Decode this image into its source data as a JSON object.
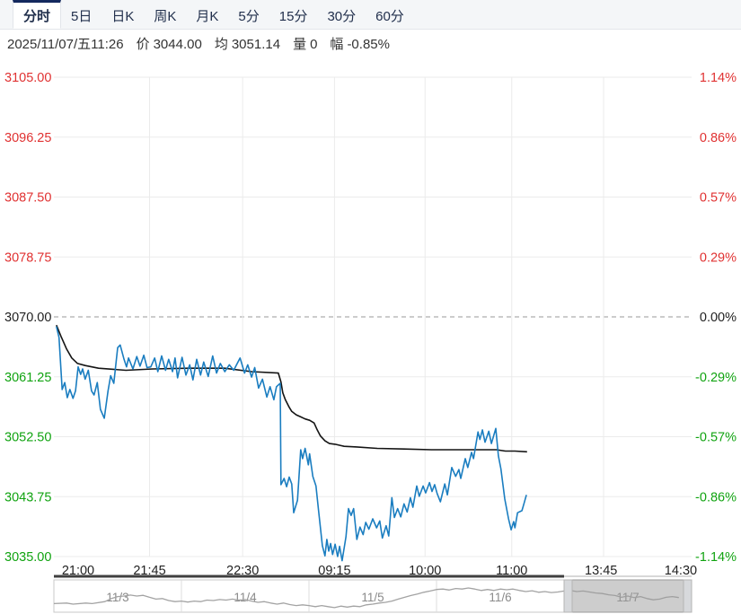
{
  "tabs": {
    "items": [
      {
        "label": "分时",
        "active": true
      },
      {
        "label": "5日",
        "active": false
      },
      {
        "label": "日K",
        "active": false
      },
      {
        "label": "周K",
        "active": false
      },
      {
        "label": "月K",
        "active": false
      },
      {
        "label": "5分",
        "active": false
      },
      {
        "label": "15分",
        "active": false
      },
      {
        "label": "30分",
        "active": false
      },
      {
        "label": "60分",
        "active": false
      }
    ]
  },
  "info_bar": {
    "datetime": "2025/11/07/五11:26",
    "price_label": "价",
    "price": "3044.00",
    "avg_label": "均",
    "avg": "3051.14",
    "volume_label": "量",
    "volume": "0",
    "change_label": "幅",
    "change": "-0.85%"
  },
  "chart_data": {
    "type": "line",
    "title": "分时 (intraday time-sharing chart)",
    "y_range": {
      "min": 3035,
      "max": 3105,
      "baseline": 3070
    },
    "y_axis_left": {
      "labels": [
        "3105.00",
        "3096.25",
        "3087.50",
        "3078.75",
        "3070.00",
        "3061.25",
        "3052.50",
        "3043.75",
        "3035.00"
      ]
    },
    "y_axis_right": {
      "labels": [
        "1.14%",
        "0.86%",
        "0.57%",
        "0.29%",
        "0.00%",
        "-0.29%",
        "-0.57%",
        "-0.86%",
        "-1.14%"
      ]
    },
    "x_axis": {
      "labels": [
        "21:00",
        "21:45",
        "22:30",
        "09:15",
        "10:00",
        "11:00",
        "13:45",
        "14:30"
      ],
      "positions": [
        0.038,
        0.15,
        0.296,
        0.44,
        0.582,
        0.718,
        0.858,
        0.983
      ]
    },
    "gridline_positions": [
      0.15,
      0.296,
      0.44,
      0.582,
      0.718,
      0.862
    ],
    "grid": true,
    "legend": "none",
    "progress_end": 0.8,
    "colors": {
      "positive": "#e03232",
      "negative": "#11a311",
      "neutral": "#222222",
      "price_line": "#1a7dc0",
      "average_line": "#141414",
      "grid": "#ebebeb",
      "baseline_dash": "#9a9a9a",
      "axis_dark": "#3f3f3f",
      "axis_light": "#d8d8d8"
    },
    "series": [
      {
        "name": "price",
        "color": "#1a7dc0",
        "points": [
          [
            0.004,
            3068.6
          ],
          [
            0.008,
            3067.0
          ],
          [
            0.013,
            3059.4
          ],
          [
            0.017,
            3060.4
          ],
          [
            0.021,
            3058.2
          ],
          [
            0.025,
            3059.4
          ],
          [
            0.03,
            3058.1
          ],
          [
            0.034,
            3059.2
          ],
          [
            0.038,
            3062.7
          ],
          [
            0.042,
            3061.6
          ],
          [
            0.045,
            3062.4
          ],
          [
            0.049,
            3060.9
          ],
          [
            0.054,
            3062.2
          ],
          [
            0.059,
            3059.2
          ],
          [
            0.063,
            3058.6
          ],
          [
            0.068,
            3060.4
          ],
          [
            0.073,
            3056.5
          ],
          [
            0.079,
            3055.2
          ],
          [
            0.085,
            3059.2
          ],
          [
            0.089,
            3061.4
          ],
          [
            0.094,
            3060.3
          ],
          [
            0.1,
            3065.5
          ],
          [
            0.104,
            3065.9
          ],
          [
            0.11,
            3063.8
          ],
          [
            0.114,
            3062.7
          ],
          [
            0.117,
            3064.0
          ],
          [
            0.124,
            3062.4
          ],
          [
            0.13,
            3064.2
          ],
          [
            0.135,
            3062.8
          ],
          [
            0.141,
            3064.4
          ],
          [
            0.146,
            3062.6
          ],
          [
            0.152,
            3062.7
          ],
          [
            0.158,
            3064.0
          ],
          [
            0.163,
            3062.0
          ],
          [
            0.169,
            3064.3
          ],
          [
            0.175,
            3062.2
          ],
          [
            0.18,
            3063.8
          ],
          [
            0.186,
            3062.0
          ],
          [
            0.19,
            3064.0
          ],
          [
            0.194,
            3061.1
          ],
          [
            0.201,
            3064.1
          ],
          [
            0.207,
            3061.5
          ],
          [
            0.213,
            3063.0
          ],
          [
            0.218,
            3060.8
          ],
          [
            0.224,
            3063.8
          ],
          [
            0.23,
            3061.5
          ],
          [
            0.235,
            3063.4
          ],
          [
            0.242,
            3061.3
          ],
          [
            0.249,
            3064.3
          ],
          [
            0.255,
            3061.8
          ],
          [
            0.261,
            3063.2
          ],
          [
            0.268,
            3062.0
          ],
          [
            0.275,
            3063.0
          ],
          [
            0.282,
            3062.2
          ],
          [
            0.292,
            3064.0
          ],
          [
            0.299,
            3061.8
          ],
          [
            0.304,
            3063.0
          ],
          [
            0.31,
            3061.2
          ],
          [
            0.315,
            3062.6
          ],
          [
            0.321,
            3059.6
          ],
          [
            0.327,
            3060.9
          ],
          [
            0.334,
            3058.3
          ],
          [
            0.339,
            3059.8
          ],
          [
            0.345,
            3057.9
          ],
          [
            0.349,
            3059.8
          ],
          [
            0.355,
            3060.3
          ],
          [
            0.356,
            3045.5
          ],
          [
            0.361,
            3046.4
          ],
          [
            0.365,
            3045.2
          ],
          [
            0.369,
            3046.6
          ],
          [
            0.373,
            3045.6
          ],
          [
            0.376,
            3041.4
          ],
          [
            0.382,
            3043.2
          ],
          [
            0.387,
            3050.6
          ],
          [
            0.39,
            3049.3
          ],
          [
            0.394,
            3050.8
          ],
          [
            0.399,
            3048.4
          ],
          [
            0.401,
            3050.0
          ],
          [
            0.406,
            3046.7
          ],
          [
            0.411,
            3045.3
          ],
          [
            0.415,
            3041.8
          ],
          [
            0.421,
            3036.6
          ],
          [
            0.425,
            3035.1
          ],
          [
            0.428,
            3037.5
          ],
          [
            0.431,
            3035.8
          ],
          [
            0.434,
            3036.9
          ],
          [
            0.437,
            3035.3
          ],
          [
            0.441,
            3036.8
          ],
          [
            0.445,
            3035.0
          ],
          [
            0.448,
            3036.5
          ],
          [
            0.452,
            3034.4
          ],
          [
            0.458,
            3037.9
          ],
          [
            0.462,
            3042.0
          ],
          [
            0.466,
            3041.0
          ],
          [
            0.47,
            3042.0
          ],
          [
            0.475,
            3037.5
          ],
          [
            0.48,
            3039.3
          ],
          [
            0.485,
            3038.2
          ],
          [
            0.489,
            3040.0
          ],
          [
            0.494,
            3039.0
          ],
          [
            0.5,
            3040.5
          ],
          [
            0.506,
            3039.2
          ],
          [
            0.511,
            3040.2
          ],
          [
            0.515,
            3037.7
          ],
          [
            0.521,
            3039.5
          ],
          [
            0.525,
            3038.0
          ],
          [
            0.53,
            3043.6
          ],
          [
            0.534,
            3040.7
          ],
          [
            0.539,
            3042.0
          ],
          [
            0.544,
            3040.8
          ],
          [
            0.549,
            3042.7
          ],
          [
            0.554,
            3041.5
          ],
          [
            0.559,
            3043.6
          ],
          [
            0.563,
            3042.2
          ],
          [
            0.569,
            3045.3
          ],
          [
            0.573,
            3043.8
          ],
          [
            0.579,
            3045.3
          ],
          [
            0.583,
            3044.3
          ],
          [
            0.589,
            3045.8
          ],
          [
            0.593,
            3044.5
          ],
          [
            0.597,
            3045.5
          ],
          [
            0.601,
            3044.2
          ],
          [
            0.606,
            3043.0
          ],
          [
            0.613,
            3045.6
          ],
          [
            0.617,
            3044.0
          ],
          [
            0.624,
            3048.0
          ],
          [
            0.63,
            3046.7
          ],
          [
            0.635,
            3047.7
          ],
          [
            0.638,
            3046.4
          ],
          [
            0.645,
            3049.3
          ],
          [
            0.649,
            3048.0
          ],
          [
            0.655,
            3050.2
          ],
          [
            0.658,
            3049.3
          ],
          [
            0.665,
            3053.2
          ],
          [
            0.668,
            3052.1
          ],
          [
            0.672,
            3053.5
          ],
          [
            0.676,
            3051.7
          ],
          [
            0.682,
            3053.3
          ],
          [
            0.686,
            3051.5
          ],
          [
            0.693,
            3053.7
          ],
          [
            0.697,
            3049.7
          ],
          [
            0.701,
            3047.8
          ],
          [
            0.707,
            3043.4
          ],
          [
            0.713,
            3040.5
          ],
          [
            0.717,
            3038.9
          ],
          [
            0.721,
            3040.1
          ],
          [
            0.723,
            3039.2
          ],
          [
            0.727,
            3041.4
          ],
          [
            0.734,
            3041.7
          ],
          [
            0.737,
            3042.7
          ],
          [
            0.741,
            3044.0
          ]
        ]
      },
      {
        "name": "average",
        "color": "#141414",
        "points": [
          [
            0.004,
            3068.8
          ],
          [
            0.011,
            3067.2
          ],
          [
            0.02,
            3065.3
          ],
          [
            0.028,
            3064.0
          ],
          [
            0.037,
            3063.2
          ],
          [
            0.049,
            3062.9
          ],
          [
            0.07,
            3062.5
          ],
          [
            0.113,
            3062.2
          ],
          [
            0.155,
            3062.4
          ],
          [
            0.211,
            3062.5
          ],
          [
            0.268,
            3062.5
          ],
          [
            0.31,
            3062.0
          ],
          [
            0.352,
            3061.8
          ],
          [
            0.356,
            3060.5
          ],
          [
            0.359,
            3058.9
          ],
          [
            0.363,
            3057.9
          ],
          [
            0.369,
            3056.8
          ],
          [
            0.373,
            3056.2
          ],
          [
            0.38,
            3055.7
          ],
          [
            0.387,
            3055.4
          ],
          [
            0.394,
            3055.1
          ],
          [
            0.401,
            3054.9
          ],
          [
            0.408,
            3054.5
          ],
          [
            0.413,
            3053.5
          ],
          [
            0.418,
            3052.6
          ],
          [
            0.425,
            3051.9
          ],
          [
            0.432,
            3051.5
          ],
          [
            0.441,
            3051.4
          ],
          [
            0.455,
            3051.1
          ],
          [
            0.475,
            3051.0
          ],
          [
            0.507,
            3050.8
          ],
          [
            0.549,
            3050.7
          ],
          [
            0.592,
            3050.6
          ],
          [
            0.648,
            3050.6
          ],
          [
            0.694,
            3050.6
          ],
          [
            0.708,
            3050.4
          ],
          [
            0.723,
            3050.4
          ],
          [
            0.742,
            3050.3
          ]
        ]
      }
    ]
  },
  "navigator": {
    "dates": [
      "11/3",
      "11/4",
      "11/5",
      "11/6",
      "11/7"
    ],
    "selection": {
      "start": 0.8,
      "end": 1.0
    },
    "sparkline": [
      [
        0.0,
        0.8
      ],
      [
        0.02,
        0.78
      ],
      [
        0.03,
        0.82
      ],
      [
        0.05,
        0.78
      ],
      [
        0.06,
        0.8
      ],
      [
        0.08,
        0.72
      ],
      [
        0.09,
        0.6
      ],
      [
        0.1,
        0.52
      ],
      [
        0.11,
        0.5
      ],
      [
        0.12,
        0.46
      ],
      [
        0.13,
        0.5
      ],
      [
        0.14,
        0.47
      ],
      [
        0.15,
        0.55
      ],
      [
        0.16,
        0.62
      ],
      [
        0.17,
        0.6
      ],
      [
        0.18,
        0.68
      ],
      [
        0.19,
        0.72
      ],
      [
        0.2,
        0.7
      ],
      [
        0.21,
        0.74
      ],
      [
        0.22,
        0.7
      ],
      [
        0.23,
        0.72
      ],
      [
        0.24,
        0.66
      ],
      [
        0.25,
        0.68
      ],
      [
        0.26,
        0.64
      ],
      [
        0.27,
        0.66
      ],
      [
        0.28,
        0.62
      ],
      [
        0.29,
        0.66
      ],
      [
        0.3,
        0.64
      ],
      [
        0.31,
        0.7
      ],
      [
        0.32,
        0.75
      ],
      [
        0.33,
        0.72
      ],
      [
        0.34,
        0.78
      ],
      [
        0.35,
        0.82
      ],
      [
        0.36,
        0.78
      ],
      [
        0.37,
        0.84
      ],
      [
        0.38,
        0.88
      ],
      [
        0.39,
        0.85
      ],
      [
        0.4,
        0.88
      ],
      [
        0.41,
        0.92
      ],
      [
        0.42,
        0.88
      ],
      [
        0.43,
        0.92
      ],
      [
        0.44,
        0.96
      ],
      [
        0.45,
        0.9
      ],
      [
        0.46,
        0.94
      ],
      [
        0.47,
        0.9
      ],
      [
        0.48,
        0.92
      ],
      [
        0.49,
        0.85
      ],
      [
        0.5,
        0.82
      ],
      [
        0.51,
        0.78
      ],
      [
        0.52,
        0.75
      ],
      [
        0.53,
        0.7
      ],
      [
        0.54,
        0.62
      ],
      [
        0.55,
        0.55
      ],
      [
        0.56,
        0.48
      ],
      [
        0.57,
        0.42
      ],
      [
        0.58,
        0.35
      ],
      [
        0.59,
        0.3
      ],
      [
        0.6,
        0.24
      ],
      [
        0.61,
        0.22
      ],
      [
        0.62,
        0.26
      ],
      [
        0.63,
        0.2
      ],
      [
        0.64,
        0.22
      ],
      [
        0.65,
        0.18
      ],
      [
        0.66,
        0.22
      ],
      [
        0.67,
        0.28
      ],
      [
        0.68,
        0.24
      ],
      [
        0.69,
        0.28
      ],
      [
        0.7,
        0.22
      ],
      [
        0.71,
        0.25
      ],
      [
        0.72,
        0.22
      ],
      [
        0.73,
        0.28
      ],
      [
        0.74,
        0.32
      ],
      [
        0.75,
        0.29
      ],
      [
        0.76,
        0.35
      ],
      [
        0.77,
        0.32
      ],
      [
        0.78,
        0.36
      ],
      [
        0.79,
        0.34
      ],
      [
        0.8,
        0.3
      ],
      [
        0.81,
        0.28
      ],
      [
        0.82,
        0.32
      ],
      [
        0.83,
        0.3
      ],
      [
        0.84,
        0.34
      ],
      [
        0.85,
        0.38
      ],
      [
        0.86,
        0.4
      ],
      [
        0.87,
        0.45
      ],
      [
        0.88,
        0.48
      ],
      [
        0.89,
        0.55
      ],
      [
        0.9,
        0.5
      ],
      [
        0.91,
        0.56
      ],
      [
        0.92,
        0.52
      ],
      [
        0.93,
        0.6
      ],
      [
        0.94,
        0.65
      ],
      [
        0.95,
        0.62
      ],
      [
        0.96,
        0.55
      ],
      [
        0.97,
        0.52
      ],
      [
        0.98,
        0.56
      ]
    ]
  }
}
